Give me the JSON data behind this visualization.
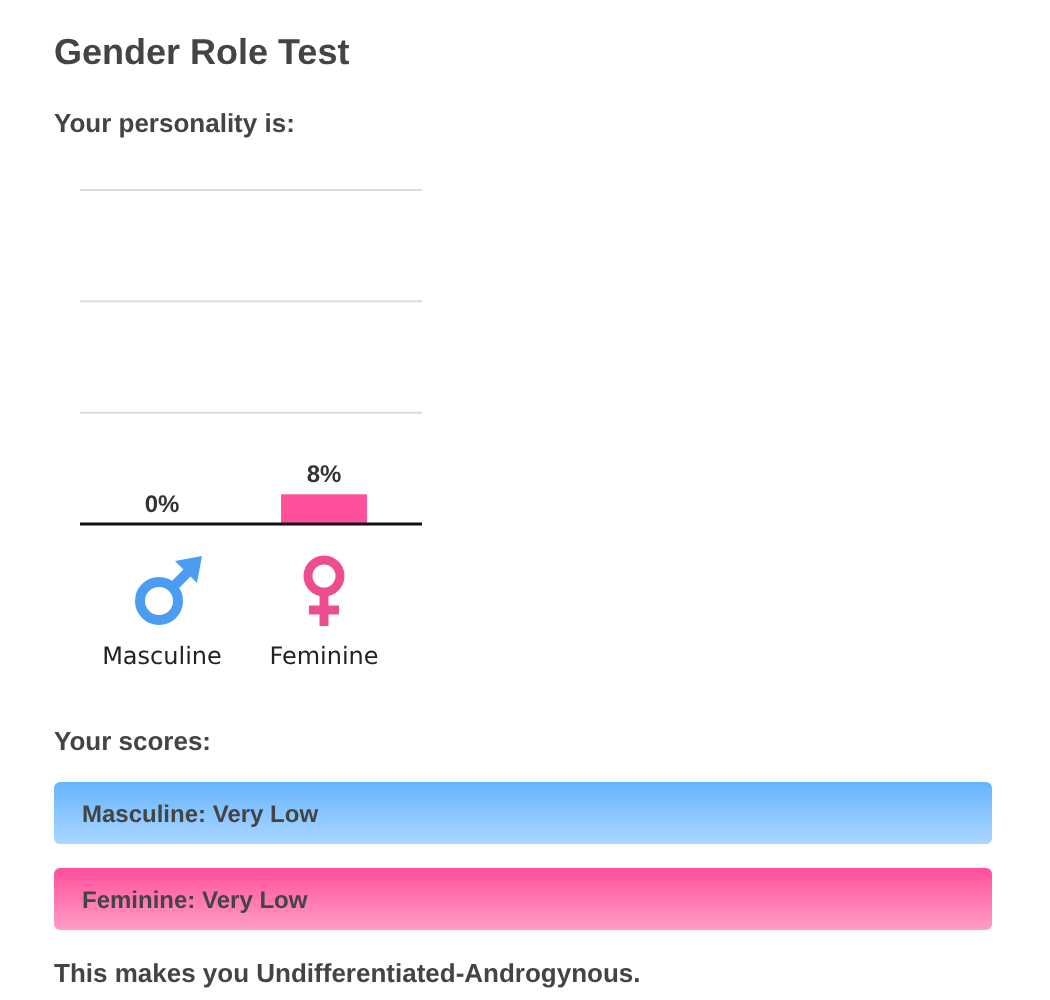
{
  "chart_data": {
    "type": "bar",
    "title": "Gender Role Test",
    "subtitle": "Your personality is:",
    "categories": [
      "Masculine",
      "Feminine"
    ],
    "values": [
      0,
      8
    ],
    "colors": [
      "#66b5ff",
      "#ff4f9b"
    ],
    "value_labels": [
      "0%",
      "8%"
    ],
    "ylim": [
      0,
      90
    ],
    "yticks": [
      {
        "value": 30,
        "label": null
      },
      {
        "value": 60,
        "label": null
      },
      {
        "value": 90,
        "label": null
      }
    ],
    "grid": "y",
    "tick_labels": "x",
    "annotations": [
      "Your scores:",
      "Masculine: Very Low",
      "Feminine: Very Low",
      "This makes you Undifferentiated-Androgynous."
    ]
  }
}
